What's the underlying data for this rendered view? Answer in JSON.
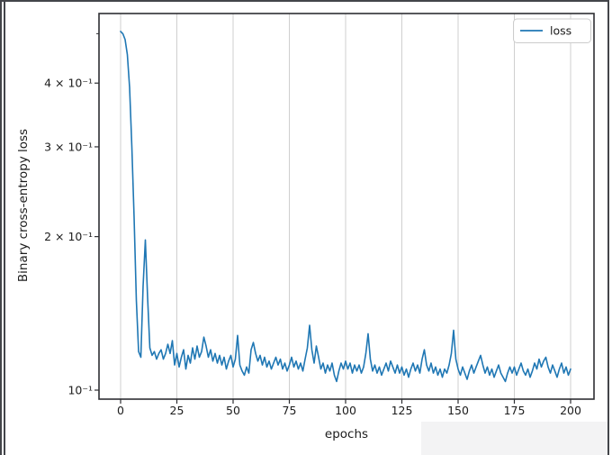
{
  "window": {
    "background": "#ffffff",
    "frame_color": "#43454a"
  },
  "chart_data": {
    "type": "line",
    "title": "",
    "xlabel": "epochs",
    "ylabel": "Binary cross-entropy loss",
    "xscale": "linear",
    "yscale": "log",
    "xlim": [
      -10,
      210
    ],
    "ylim": [
      0.096,
      0.548
    ],
    "grid": "vertical-only",
    "grid_color": "#cfcfcf",
    "x_ticks": [
      0,
      25,
      50,
      75,
      100,
      125,
      150,
      175,
      200
    ],
    "y_ticks": [
      {
        "value": 0.1,
        "label": "10⁻¹"
      },
      {
        "value": 0.2,
        "label": "2 × 10⁻¹"
      },
      {
        "value": 0.3,
        "label": "3 × 10⁻¹"
      },
      {
        "value": 0.4,
        "label": "4 × 10⁻¹"
      }
    ],
    "y_minor_ticks": [
      0.5
    ],
    "legend": {
      "position": "upper right",
      "entries": [
        {
          "label": "loss",
          "color": "#1f77b4"
        }
      ]
    },
    "series": [
      {
        "name": "loss",
        "color": "#1f77b4",
        "x_start": 0,
        "x_step": 1,
        "values": [
          0.505,
          0.5,
          0.487,
          0.455,
          0.392,
          0.3,
          0.218,
          0.15,
          0.119,
          0.116,
          0.16,
          0.197,
          0.152,
          0.121,
          0.117,
          0.119,
          0.115,
          0.118,
          0.12,
          0.115,
          0.118,
          0.123,
          0.118,
          0.125,
          0.112,
          0.118,
          0.111,
          0.116,
          0.12,
          0.11,
          0.117,
          0.113,
          0.121,
          0.115,
          0.122,
          0.116,
          0.119,
          0.127,
          0.122,
          0.116,
          0.12,
          0.114,
          0.118,
          0.113,
          0.117,
          0.112,
          0.116,
          0.11,
          0.114,
          0.117,
          0.111,
          0.115,
          0.128,
          0.112,
          0.109,
          0.107,
          0.111,
          0.108,
          0.12,
          0.124,
          0.118,
          0.114,
          0.117,
          0.112,
          0.116,
          0.111,
          0.114,
          0.11,
          0.113,
          0.116,
          0.112,
          0.115,
          0.11,
          0.113,
          0.109,
          0.112,
          0.116,
          0.111,
          0.114,
          0.11,
          0.113,
          0.109,
          0.115,
          0.121,
          0.134,
          0.12,
          0.113,
          0.122,
          0.116,
          0.11,
          0.113,
          0.108,
          0.112,
          0.109,
          0.113,
          0.107,
          0.104,
          0.109,
          0.113,
          0.11,
          0.114,
          0.11,
          0.113,
          0.108,
          0.112,
          0.109,
          0.112,
          0.108,
          0.111,
          0.118,
          0.129,
          0.115,
          0.109,
          0.112,
          0.108,
          0.111,
          0.107,
          0.11,
          0.113,
          0.109,
          0.114,
          0.111,
          0.108,
          0.112,
          0.108,
          0.111,
          0.107,
          0.11,
          0.106,
          0.11,
          0.113,
          0.109,
          0.112,
          0.108,
          0.115,
          0.12,
          0.112,
          0.109,
          0.113,
          0.108,
          0.111,
          0.107,
          0.11,
          0.106,
          0.11,
          0.108,
          0.112,
          0.118,
          0.131,
          0.115,
          0.11,
          0.107,
          0.111,
          0.108,
          0.105,
          0.109,
          0.112,
          0.108,
          0.111,
          0.114,
          0.117,
          0.112,
          0.108,
          0.111,
          0.107,
          0.11,
          0.106,
          0.109,
          0.112,
          0.108,
          0.106,
          0.104,
          0.108,
          0.111,
          0.108,
          0.111,
          0.107,
          0.11,
          0.113,
          0.109,
          0.107,
          0.11,
          0.106,
          0.109,
          0.113,
          0.11,
          0.115,
          0.111,
          0.114,
          0.116,
          0.111,
          0.108,
          0.112,
          0.109,
          0.106,
          0.11,
          0.113,
          0.108,
          0.111,
          0.107,
          0.11
        ]
      }
    ]
  }
}
